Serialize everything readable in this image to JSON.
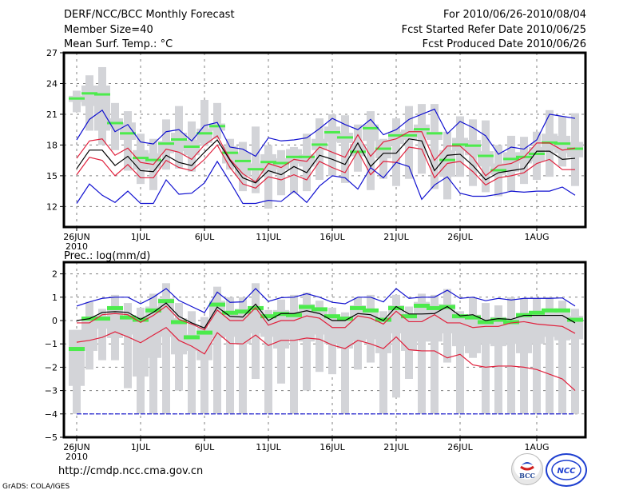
{
  "header": {
    "title": "DERF/NCC/BCC Monthly Forecast",
    "member_size": "Member Size=40",
    "variable_top": "Mean Surf. Temp.: °C",
    "period": "For 2010/06/26-2010/08/04",
    "started": "Fcst Started Refer Date 2010/06/25",
    "produced": "Fcst Produced Date 2010/06/26"
  },
  "footer": {
    "url": "http://cmdp.ncc.cma.gov.cn",
    "grads": "GrADS: COLA/IGES",
    "logos": [
      "BCC",
      "NCC"
    ]
  },
  "colors": {
    "box": "#d3d4d8",
    "obs": "#4ceb4c",
    "mean": "#000000",
    "sd": "#e0203c",
    "extreme": "#1010d0",
    "grid": "#808080"
  },
  "chart_data": [
    {
      "type": "line",
      "title": "Mean Surf. Temp.: °C",
      "ylim": [
        10,
        27
      ],
      "yticks": [
        12,
        15,
        18,
        21,
        24,
        27
      ],
      "xticks": [
        {
          "day": 0,
          "label": "26JUN",
          "sub": "2010"
        },
        {
          "day": 5,
          "label": "1JUL"
        },
        {
          "day": 10,
          "label": "6JUL"
        },
        {
          "day": 15,
          "label": "11JUL"
        },
        {
          "day": 20,
          "label": "16JUL"
        },
        {
          "day": 25,
          "label": "21JUL"
        },
        {
          "day": 30,
          "label": "26JUL"
        },
        {
          "day": 36,
          "label": "1AUG"
        }
      ],
      "grid": true,
      "x_start": "2010-06-26",
      "n_days": 40,
      "series": [
        {
          "name": "ens_upper_extreme",
          "color": "extreme",
          "values": [
            18.5,
            20.5,
            21.4,
            19.3,
            20.0,
            18.3,
            18.1,
            19.3,
            19.5,
            18.4,
            19.9,
            20.2,
            17.8,
            17.6,
            16.9,
            18.7,
            18.4,
            18.5,
            18.7,
            19.6,
            20.6,
            20.0,
            19.5,
            20.5,
            19.0,
            19.5,
            20.5,
            21.0,
            21.5,
            19.1,
            20.3,
            19.7,
            18.9,
            17.1,
            17.8,
            17.6,
            18.5,
            21.0,
            20.8,
            20.6
          ]
        },
        {
          "name": "ens_upper_sd",
          "color": "sd",
          "values": [
            16.7,
            18.4,
            18.6,
            17.0,
            17.7,
            16.3,
            16.1,
            17.6,
            17.3,
            16.6,
            18.0,
            18.9,
            16.6,
            15.2,
            14.4,
            16.2,
            15.8,
            16.6,
            16.4,
            17.8,
            17.3,
            16.8,
            19.0,
            16.9,
            18.3,
            18.6,
            19.3,
            19.3,
            16.5,
            17.9,
            17.9,
            16.8,
            15.0,
            16.0,
            16.2,
            16.8,
            18.2,
            18.2,
            17.5,
            17.7
          ]
        },
        {
          "name": "ens_mean",
          "color": "mean",
          "values": [
            15.7,
            17.5,
            17.5,
            16.0,
            16.9,
            15.5,
            15.4,
            17.0,
            16.3,
            16.0,
            17.3,
            18.5,
            16.5,
            14.8,
            14.3,
            15.5,
            15.1,
            15.9,
            15.3,
            17.0,
            16.6,
            16.1,
            18.2,
            15.9,
            17.2,
            17.2,
            18.6,
            18.4,
            15.5,
            17.0,
            17.1,
            16.0,
            14.6,
            15.3,
            15.5,
            15.7,
            17.4,
            17.4,
            16.6,
            16.7
          ]
        },
        {
          "name": "ens_lower_sd",
          "color": "sd",
          "values": [
            15.1,
            16.8,
            16.5,
            15.0,
            16.1,
            14.8,
            14.8,
            16.5,
            15.8,
            15.5,
            16.6,
            18.0,
            15.8,
            14.2,
            13.8,
            14.9,
            14.6,
            15.1,
            14.6,
            16.4,
            15.8,
            15.3,
            17.4,
            15.1,
            16.4,
            16.3,
            17.8,
            17.6,
            14.8,
            16.2,
            16.4,
            15.4,
            14.1,
            14.8,
            15.0,
            15.3,
            16.2,
            16.6,
            15.6,
            15.6
          ]
        },
        {
          "name": "ens_lower_extreme",
          "color": "extreme",
          "values": [
            12.3,
            14.2,
            13.1,
            12.4,
            13.5,
            12.3,
            12.3,
            14.6,
            13.2,
            13.3,
            14.3,
            16.4,
            14.4,
            12.3,
            12.3,
            12.6,
            12.5,
            13.5,
            12.4,
            14.0,
            15.0,
            14.8,
            13.7,
            15.8,
            14.8,
            16.3,
            15.9,
            12.7,
            14.1,
            14.9,
            13.3,
            13.0,
            13.0,
            13.2,
            13.5,
            13.4,
            13.5,
            13.5,
            13.9,
            13.1
          ]
        }
      ],
      "observed": [
        22.5,
        23.0,
        22.9,
        20.1,
        19.1,
        16.7,
        16.5,
        18.1,
        18.5,
        17.8,
        19.1,
        19.8,
        17.2,
        16.4,
        15.6,
        16.3,
        16.2,
        16.8,
        16.8,
        18.0,
        19.2,
        18.7,
        17.3,
        19.6,
        17.6,
        18.9,
        18.9,
        19.5,
        19.1,
        16.5,
        18.0,
        17.9,
        16.9,
        15.5,
        16.6,
        16.8,
        17.1,
        18.2,
        18.1,
        17.6
      ],
      "box_whisker": {
        "min": [
          21.2,
          19.4,
          18.0,
          17.5,
          15.5,
          14.2,
          13.6,
          15.6,
          15.7,
          15.4,
          17.9,
          18.6,
          15.6,
          13.5,
          13.3,
          11.8,
          13.1,
          13.3,
          13.5,
          14.6,
          15.0,
          14.3,
          15.4,
          13.6,
          14.7,
          14.0,
          14.7,
          15.2,
          13.7,
          12.7,
          14.9,
          14.0,
          13.4,
          13.0,
          13.5,
          14.2,
          14.6,
          14.9,
          15.9,
          14.0
        ],
        "p25": [
          22.2,
          21.8,
          19.4,
          19.6,
          18.5,
          15.6,
          15.7,
          17.2,
          17.4,
          17.0,
          18.2,
          19.4,
          16.2,
          15.0,
          15.5,
          15.2,
          15.6,
          16.2,
          15.9,
          17.5,
          18.3,
          18.2,
          16.9,
          18.4,
          16.7,
          18.1,
          18.5,
          18.7,
          18.5,
          14.9,
          17.4,
          17.0,
          15.9,
          15.1,
          15.4,
          16.2,
          16.4,
          17.5,
          17.2,
          16.8
        ],
        "p75": [
          22.8,
          23.8,
          23.8,
          20.6,
          20.2,
          17.5,
          17.2,
          18.4,
          19.2,
          18.5,
          19.6,
          20.1,
          17.9,
          17.3,
          16.2,
          17.1,
          16.7,
          17.6,
          17.1,
          18.6,
          19.8,
          19.2,
          18.1,
          20.0,
          18.5,
          19.3,
          19.5,
          20.0,
          19.3,
          17.5,
          18.7,
          18.5,
          17.4,
          16.2,
          17.3,
          17.3,
          17.8,
          19.1,
          18.9,
          18.3
        ],
        "max": [
          23.3,
          24.8,
          25.6,
          22.1,
          21.3,
          19.1,
          18.6,
          20.5,
          21.8,
          20.3,
          22.4,
          22.1,
          18.6,
          18.3,
          19.8,
          18.0,
          17.5,
          17.8,
          19.1,
          20.6,
          21.0,
          20.9,
          20.0,
          21.3,
          18.6,
          20.6,
          21.8,
          22.0,
          22.0,
          19.3,
          20.8,
          20.5,
          20.4,
          18.0,
          18.9,
          18.8,
          19.3,
          21.4,
          20.8,
          21.1
        ]
      }
    },
    {
      "type": "line",
      "title": "Prec.: log(mm/d)",
      "ylim": [
        -5,
        2.5
      ],
      "yticks": [
        -5,
        -4,
        -3,
        -2,
        -1,
        0,
        1,
        2
      ],
      "xticks": [
        {
          "day": 0,
          "label": "26JUN",
          "sub": "2010"
        },
        {
          "day": 5,
          "label": "1JUL"
        },
        {
          "day": 10,
          "label": "6JUL"
        },
        {
          "day": 15,
          "label": "11JUL"
        },
        {
          "day": 20,
          "label": "16JUL"
        },
        {
          "day": 25,
          "label": "21JUL"
        },
        {
          "day": 30,
          "label": "26JUL"
        },
        {
          "day": 36,
          "label": "1AUG"
        }
      ],
      "grid": true,
      "x_start": "2010-06-26",
      "n_days": 40,
      "series": [
        {
          "name": "ens_upper_extreme",
          "color": "extreme",
          "values": [
            0.62,
            0.8,
            0.95,
            1.0,
            1.0,
            0.72,
            1.0,
            1.37,
            0.86,
            0.6,
            0.34,
            1.22,
            0.78,
            0.8,
            1.37,
            0.82,
            0.98,
            1.0,
            1.15,
            1.0,
            0.78,
            0.72,
            1.0,
            1.0,
            0.8,
            1.37,
            0.95,
            1.0,
            1.0,
            1.3,
            0.95,
            1.0,
            0.85,
            0.95,
            0.88,
            0.95,
            0.95,
            0.95,
            0.97,
            0.62
          ]
        },
        {
          "name": "ens_mean",
          "color": "mean",
          "values": [
            0.0,
            0.08,
            0.35,
            0.38,
            0.35,
            0.05,
            0.35,
            0.75,
            0.18,
            -0.1,
            -0.32,
            0.58,
            0.18,
            0.15,
            0.7,
            0.0,
            0.3,
            0.3,
            0.42,
            0.3,
            0.0,
            0.0,
            0.3,
            0.25,
            0.0,
            0.6,
            0.28,
            0.28,
            0.3,
            0.6,
            0.2,
            0.25,
            0.0,
            0.08,
            0.05,
            0.22,
            0.22,
            0.22,
            0.22,
            -0.1
          ]
        },
        {
          "name": "ens_upper_sd",
          "color": "sd",
          "values": [
            -0.1,
            -0.1,
            0.25,
            0.3,
            0.25,
            -0.08,
            0.22,
            0.62,
            0.05,
            -0.15,
            -0.4,
            0.45,
            0.0,
            0.0,
            0.55,
            -0.2,
            0.0,
            0.0,
            0.2,
            0.1,
            -0.3,
            -0.3,
            0.2,
            0.1,
            -0.15,
            0.4,
            -0.05,
            -0.05,
            0.25,
            -0.1,
            -0.1,
            -0.3,
            -0.25,
            -0.25,
            -0.1,
            -0.05,
            -0.15,
            -0.2,
            -0.25,
            -0.55
          ]
        },
        {
          "name": "ens_lower_sd",
          "color": "sd",
          "values": [
            -0.93,
            -0.85,
            -0.72,
            -0.48,
            -0.7,
            -0.95,
            -0.62,
            -0.3,
            -0.85,
            -1.1,
            -1.43,
            -0.52,
            -0.98,
            -1.0,
            -0.62,
            -1.07,
            -0.85,
            -0.85,
            -0.75,
            -0.8,
            -1.05,
            -1.2,
            -0.85,
            -1.0,
            -1.2,
            -0.7,
            -1.25,
            -1.3,
            -1.3,
            -1.6,
            -1.45,
            -1.9,
            -2.0,
            -1.95,
            -1.95,
            -2.0,
            -2.1,
            -2.3,
            -2.5,
            -3.0
          ]
        },
        {
          "name": "ens_lower_extreme",
          "color": "extreme",
          "values": [
            -4,
            -4,
            -4,
            -4,
            -4,
            -4,
            -4,
            -4,
            -4,
            -4,
            -4,
            -4,
            -4,
            -4,
            -4,
            -4,
            -4,
            -4,
            -4,
            -4,
            -4,
            -4,
            -4,
            -4,
            -4,
            -4,
            -4,
            -4,
            -4,
            -4,
            -4,
            -4,
            -4,
            -4,
            -4,
            -4,
            -4,
            -4,
            -4,
            -4
          ]
        }
      ],
      "observed": [
        -1.2,
        0.1,
        0.1,
        0.55,
        0.15,
        0.05,
        0.45,
        0.85,
        -0.05,
        -0.7,
        -0.5,
        0.7,
        0.35,
        0.4,
        0.55,
        0.2,
        0.3,
        0.25,
        0.6,
        0.5,
        0.2,
        0.1,
        0.55,
        0.45,
        0.05,
        0.55,
        0.2,
        0.65,
        0.55,
        0.6,
        0.2,
        0.15,
        -0.05,
        0.05,
        -0.05,
        0.25,
        0.35,
        0.45,
        0.45,
        0.05
      ],
      "box_whisker": {
        "min": [
          -4,
          -2.1,
          -1.7,
          -1.7,
          -2.9,
          -4,
          -4,
          -4,
          -3.0,
          -4,
          -4,
          -4,
          -4,
          -4,
          -2.5,
          -4,
          -2.7,
          -4,
          -3.0,
          -2.2,
          -2.3,
          -4,
          -2.1,
          -1.8,
          -4,
          -3.3,
          -2.5,
          -4,
          -4,
          -1.8,
          -4,
          -1.6,
          -4,
          -4,
          -4,
          -4,
          -4,
          -4,
          -4,
          -4
        ],
        "p25": [
          -2.8,
          -1.3,
          -0.35,
          -0.75,
          -0.6,
          -2.4,
          -1.6,
          -0.7,
          -1.45,
          -1.3,
          -1.7,
          -0.75,
          -0.7,
          -1.0,
          -0.55,
          -0.7,
          -1.2,
          -0.8,
          -0.9,
          -0.6,
          -1.0,
          -1.2,
          -0.9,
          -0.8,
          -1.4,
          -0.55,
          -1.3,
          -0.9,
          -0.9,
          -0.55,
          -1.1,
          -1.4,
          -1.0,
          -1.1,
          -1.0,
          -1.4,
          -1.0,
          -0.7,
          -0.85,
          -0.8
        ],
        "p75": [
          -0.4,
          0.15,
          0.2,
          0.55,
          0.2,
          0.1,
          0.6,
          0.95,
          0.1,
          -0.6,
          -0.3,
          0.85,
          0.25,
          0.5,
          0.5,
          0.1,
          0.45,
          0.4,
          0.7,
          0.45,
          0.25,
          0.1,
          0.65,
          0.5,
          0.1,
          0.65,
          0.3,
          0.8,
          0.7,
          0.7,
          0.25,
          0.25,
          0.05,
          0.15,
          0.1,
          0.3,
          0.4,
          0.5,
          0.5,
          0.2
        ],
        "max": [
          -0.4,
          0.8,
          0.5,
          1.1,
          0.75,
          0.55,
          1.15,
          1.6,
          0.75,
          0.4,
          0.15,
          1.45,
          1.0,
          1.0,
          1.6,
          0.45,
          0.9,
          1.1,
          1.2,
          0.85,
          0.55,
          0.35,
          1.0,
          1.1,
          0.4,
          1.1,
          0.6,
          1.15,
          1.1,
          1.35,
          0.4,
          1.0,
          0.75,
          0.65,
          1.0,
          0.95,
          0.95,
          1.0,
          0.85,
          0.5
        ]
      }
    }
  ]
}
